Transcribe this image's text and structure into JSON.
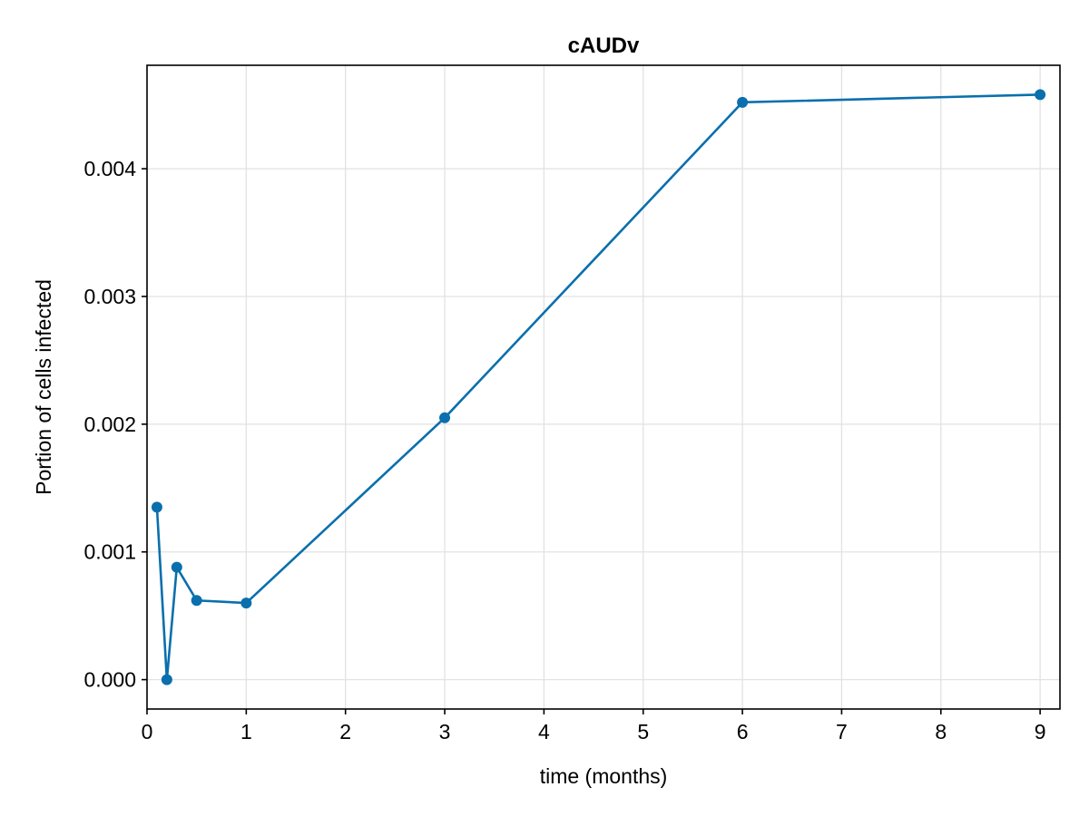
{
  "chart_data": {
    "type": "line",
    "title": "cAUDv",
    "xlabel": "time (months)",
    "ylabel": "Portion of cells infected",
    "xlim": [
      0,
      9.2
    ],
    "ylim": [
      -0.00023,
      0.00481
    ],
    "x_ticks": [
      0,
      1,
      2,
      3,
      4,
      5,
      6,
      7,
      8,
      9
    ],
    "x_tick_labels": [
      "0",
      "1",
      "2",
      "3",
      "4",
      "5",
      "6",
      "7",
      "8",
      "9"
    ],
    "y_ticks": [
      0,
      0.001,
      0.002,
      0.003,
      0.004
    ],
    "y_tick_labels": [
      "0.000",
      "0.001",
      "0.002",
      "0.003",
      "0.004"
    ],
    "grid": true,
    "series": [
      {
        "color": "#0a6fad",
        "x": [
          0.1,
          0.2,
          0.3,
          0.5,
          1,
          3,
          6,
          9
        ],
        "y": [
          0.00135,
          0.0,
          0.00088,
          0.00062,
          0.0006,
          0.00205,
          0.00452,
          0.00458
        ]
      }
    ]
  }
}
